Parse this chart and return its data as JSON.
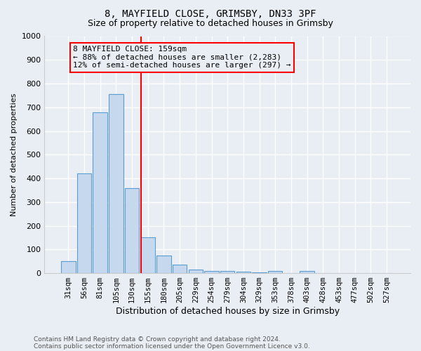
{
  "title1": "8, MAYFIELD CLOSE, GRIMSBY, DN33 3PF",
  "title2": "Size of property relative to detached houses in Grimsby",
  "xlabel": "Distribution of detached houses by size in Grimsby",
  "ylabel": "Number of detached properties",
  "footnote1": "Contains HM Land Registry data © Crown copyright and database right 2024.",
  "footnote2": "Contains public sector information licensed under the Open Government Licence v3.0.",
  "bar_labels": [
    "31sqm",
    "56sqm",
    "81sqm",
    "105sqm",
    "130sqm",
    "155sqm",
    "180sqm",
    "205sqm",
    "229sqm",
    "254sqm",
    "279sqm",
    "304sqm",
    "329sqm",
    "353sqm",
    "378sqm",
    "403sqm",
    "428sqm",
    "453sqm",
    "477sqm",
    "502sqm",
    "527sqm"
  ],
  "bar_heights": [
    50,
    420,
    680,
    755,
    360,
    150,
    75,
    35,
    15,
    10,
    8,
    5,
    3,
    8,
    0,
    8,
    0,
    0,
    0,
    0,
    0
  ],
  "bar_color": "#c5d8ee",
  "bar_edge_color": "#5a9fd4",
  "ylim": [
    0,
    1000
  ],
  "yticks": [
    0,
    100,
    200,
    300,
    400,
    500,
    600,
    700,
    800,
    900,
    1000
  ],
  "vline_index": 5,
  "vline_color": "red",
  "annotation_line1": "8 MAYFIELD CLOSE: 159sqm",
  "annotation_line2": "← 88% of detached houses are smaller (2,283)",
  "annotation_line3": "12% of semi-detached houses are larger (297) →",
  "bg_color": "#e8eef4",
  "grid_color": "#ffffff",
  "title_fontsize": 10,
  "subtitle_fontsize": 9,
  "xlabel_fontsize": 9,
  "ylabel_fontsize": 8,
  "tick_fontsize": 8,
  "xtick_fontsize": 7.5,
  "footnote_fontsize": 6.5,
  "annotation_fontsize": 8
}
